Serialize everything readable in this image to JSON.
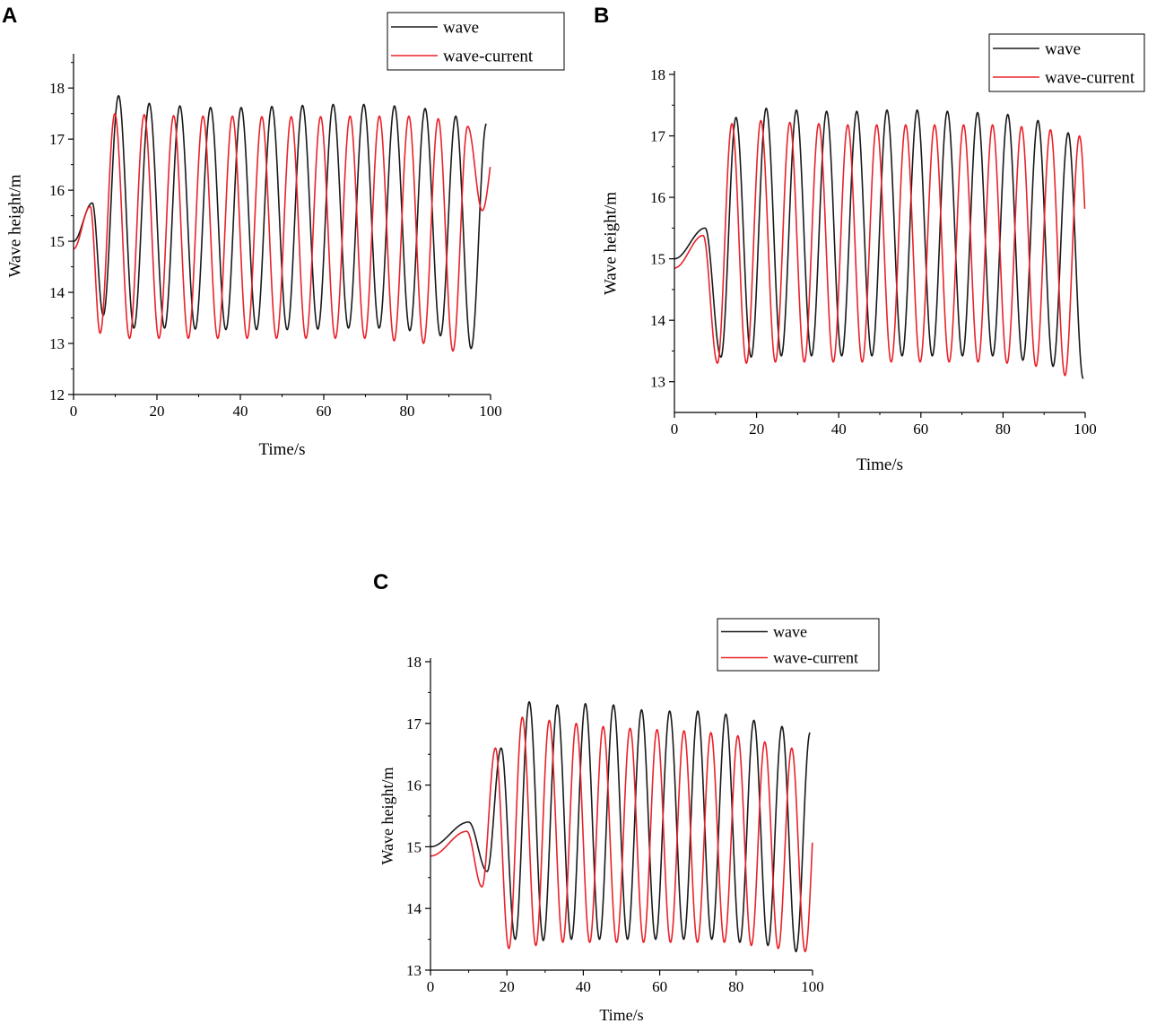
{
  "figure": {
    "colors": {
      "wave": "#1a1a1a",
      "wave_current": "#e8232a",
      "axis": "#000000"
    }
  },
  "chart_data": [
    {
      "panel": "A",
      "type": "line",
      "title": "",
      "xlabel": "Time/s",
      "ylabel": "Wave height/m",
      "xlim": [
        0,
        100
      ],
      "ylim": [
        12,
        18.6
      ],
      "xticks": [
        0,
        20,
        40,
        60,
        80,
        100
      ],
      "yticks": [
        12,
        13,
        14,
        15,
        16,
        17,
        18
      ],
      "legend_position": "top-right",
      "series": [
        {
          "name": "wave",
          "color": "#1a1a1a",
          "start": 15.0,
          "hump_time": 4.5,
          "hump_peak": 15.75,
          "period": 7.35,
          "phase_time": 10.8,
          "end": 100,
          "max": [
            17.85,
            17.7,
            17.65,
            17.62,
            17.62,
            17.64,
            17.66,
            17.68,
            17.68,
            17.65,
            17.6,
            17.45,
            17.3
          ],
          "min": [
            13.55,
            13.3,
            13.3,
            13.28,
            13.27,
            13.27,
            13.27,
            13.28,
            13.3,
            13.3,
            13.25,
            13.15,
            12.9
          ]
        },
        {
          "name": "wave-current",
          "color": "#e8232a",
          "start": 14.85,
          "hump_time": 4.0,
          "hump_peak": 15.68,
          "period": 7.05,
          "phase_time": 9.9,
          "end": 100,
          "max": [
            17.5,
            17.48,
            17.46,
            17.45,
            17.45,
            17.44,
            17.44,
            17.44,
            17.45,
            17.45,
            17.45,
            17.4,
            17.25,
            17.15
          ],
          "min": [
            13.2,
            13.1,
            13.1,
            13.1,
            13.1,
            13.1,
            13.1,
            13.1,
            13.1,
            13.1,
            13.05,
            13.0,
            12.85,
            15.6
          ]
        }
      ]
    },
    {
      "panel": "B",
      "type": "line",
      "title": "",
      "xlabel": "Time/s",
      "ylabel": "Wave height/m",
      "xlim": [
        0,
        100
      ],
      "ylim": [
        12.5,
        18
      ],
      "xticks": [
        0,
        20,
        40,
        60,
        80,
        100
      ],
      "yticks": [
        13,
        14,
        15,
        16,
        17,
        18
      ],
      "legend_position": "top-right",
      "series": [
        {
          "name": "wave",
          "color": "#1a1a1a",
          "start": 15.0,
          "hump_time": 7.5,
          "hump_peak": 15.5,
          "period": 7.35,
          "phase_time": 15.0,
          "end": 100,
          "max": [
            17.3,
            17.45,
            17.42,
            17.4,
            17.4,
            17.42,
            17.42,
            17.4,
            17.38,
            17.35,
            17.25,
            17.05
          ],
          "min": [
            13.4,
            13.4,
            13.42,
            13.42,
            13.42,
            13.42,
            13.42,
            13.42,
            13.42,
            13.42,
            13.35,
            13.25,
            13.05
          ]
        },
        {
          "name": "wave-current",
          "color": "#e8232a",
          "start": 14.85,
          "hump_time": 7.0,
          "hump_peak": 15.38,
          "period": 7.05,
          "phase_time": 14.0,
          "end": 100,
          "max": [
            17.2,
            17.25,
            17.22,
            17.2,
            17.18,
            17.18,
            17.18,
            17.18,
            17.18,
            17.18,
            17.15,
            17.1,
            17.0
          ],
          "min": [
            13.3,
            13.3,
            13.32,
            13.32,
            13.32,
            13.32,
            13.32,
            13.32,
            13.32,
            13.32,
            13.3,
            13.25,
            13.1,
            13.0
          ]
        }
      ]
    },
    {
      "panel": "C",
      "type": "line",
      "title": "",
      "xlabel": "Time/s",
      "ylabel": "Wave height/m",
      "xlim": [
        0,
        100
      ],
      "ylim": [
        13,
        18
      ],
      "xticks": [
        0,
        20,
        40,
        60,
        80,
        100
      ],
      "yticks": [
        13,
        14,
        15,
        16,
        17,
        18
      ],
      "legend_position": "top-right",
      "series": [
        {
          "name": "wave",
          "color": "#1a1a1a",
          "start": 15.0,
          "hump_time": 10.0,
          "hump_peak": 15.4,
          "period": 7.35,
          "phase_time": 18.5,
          "end": 100,
          "max": [
            16.6,
            17.35,
            17.3,
            17.32,
            17.3,
            17.22,
            17.2,
            17.2,
            17.15,
            17.05,
            16.95,
            16.85
          ],
          "min": [
            14.6,
            13.5,
            13.48,
            13.5,
            13.5,
            13.5,
            13.5,
            13.5,
            13.5,
            13.45,
            13.4,
            13.3
          ]
        },
        {
          "name": "wave-current",
          "color": "#e8232a",
          "start": 14.85,
          "hump_time": 9.5,
          "hump_peak": 15.25,
          "period": 7.05,
          "phase_time": 17.0,
          "end": 100,
          "max": [
            16.6,
            17.1,
            17.05,
            17.0,
            16.95,
            16.92,
            16.9,
            16.88,
            16.85,
            16.8,
            16.7,
            16.6,
            16.5
          ],
          "min": [
            14.35,
            13.35,
            13.4,
            13.45,
            13.45,
            13.45,
            13.45,
            13.45,
            13.45,
            13.45,
            13.4,
            13.35,
            13.3,
            15.1
          ]
        }
      ]
    }
  ]
}
